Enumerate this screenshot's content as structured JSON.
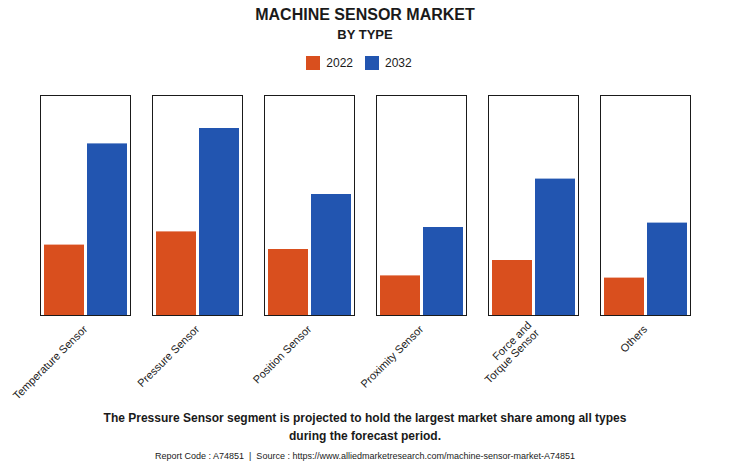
{
  "chart_data": {
    "type": "bar",
    "title": "MACHINE SENSOR MARKET",
    "subtitle": "BY TYPE",
    "categories": [
      "Temperature Sensor",
      "Pressure Sensor",
      "Position Sensor",
      "Proximity Sensor",
      "Force and\nTorque Sensor",
      "Others"
    ],
    "series": [
      {
        "name": "2022",
        "color": "#d94f1e",
        "values": [
          3.2,
          3.8,
          3.0,
          1.8,
          2.5,
          1.7
        ]
      },
      {
        "name": "2032",
        "color": "#2255b0",
        "values": [
          7.8,
          8.5,
          5.5,
          4.0,
          6.2,
          4.2
        ]
      }
    ],
    "ylim": [
      0,
      10
    ],
    "yticks": [],
    "grid": false,
    "legend": "top",
    "tick_labels": "x",
    "annotation": "The Pressure Sensor segment is projected to hold the largest market share among all types\nduring the forecast period.",
    "footer": "Report Code : A74851  |  Source : https://www.alliedmarketresearch.com/machine-sensor-market-A74851"
  }
}
